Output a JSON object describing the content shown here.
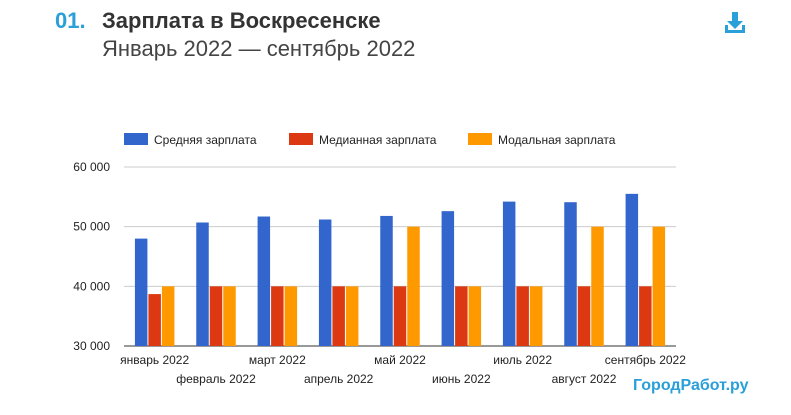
{
  "header": {
    "number": "01.",
    "title": "Зарплата в Воскресенске",
    "subtitle": "Январь 2022 — сентябрь 2022"
  },
  "brand": "ГородРабот.ру",
  "colors": {
    "accent": "#2a9fd8",
    "series": [
      "#3366cc",
      "#dc3912",
      "#ff9900"
    ]
  },
  "chart_data": {
    "type": "bar",
    "title": "Зарплата в Воскресенске",
    "xlabel": "",
    "ylabel": "",
    "ylim": [
      30000,
      60000
    ],
    "yticks": [
      "30 000",
      "40 000",
      "50 000",
      "60 000"
    ],
    "ytick_values": [
      30000,
      40000,
      50000,
      60000
    ],
    "categories": [
      "январь 2022",
      "февраль 2022",
      "март 2022",
      "апрель 2022",
      "май 2022",
      "июнь 2022",
      "июль 2022",
      "август 2022",
      "сентябрь 2022"
    ],
    "series": [
      {
        "name": "Средняя зарплата",
        "values": [
          48000,
          50700,
          51700,
          51200,
          51800,
          52600,
          54200,
          54100,
          55500
        ]
      },
      {
        "name": "Медианная зарплата",
        "values": [
          38700,
          40000,
          40000,
          40000,
          40000,
          40000,
          40000,
          40000,
          40000
        ]
      },
      {
        "name": "Модальная зарплата",
        "values": [
          40000,
          40000,
          40000,
          40000,
          50000,
          40000,
          40000,
          50000,
          50000
        ]
      }
    ],
    "legend_position": "top",
    "grid": true
  }
}
